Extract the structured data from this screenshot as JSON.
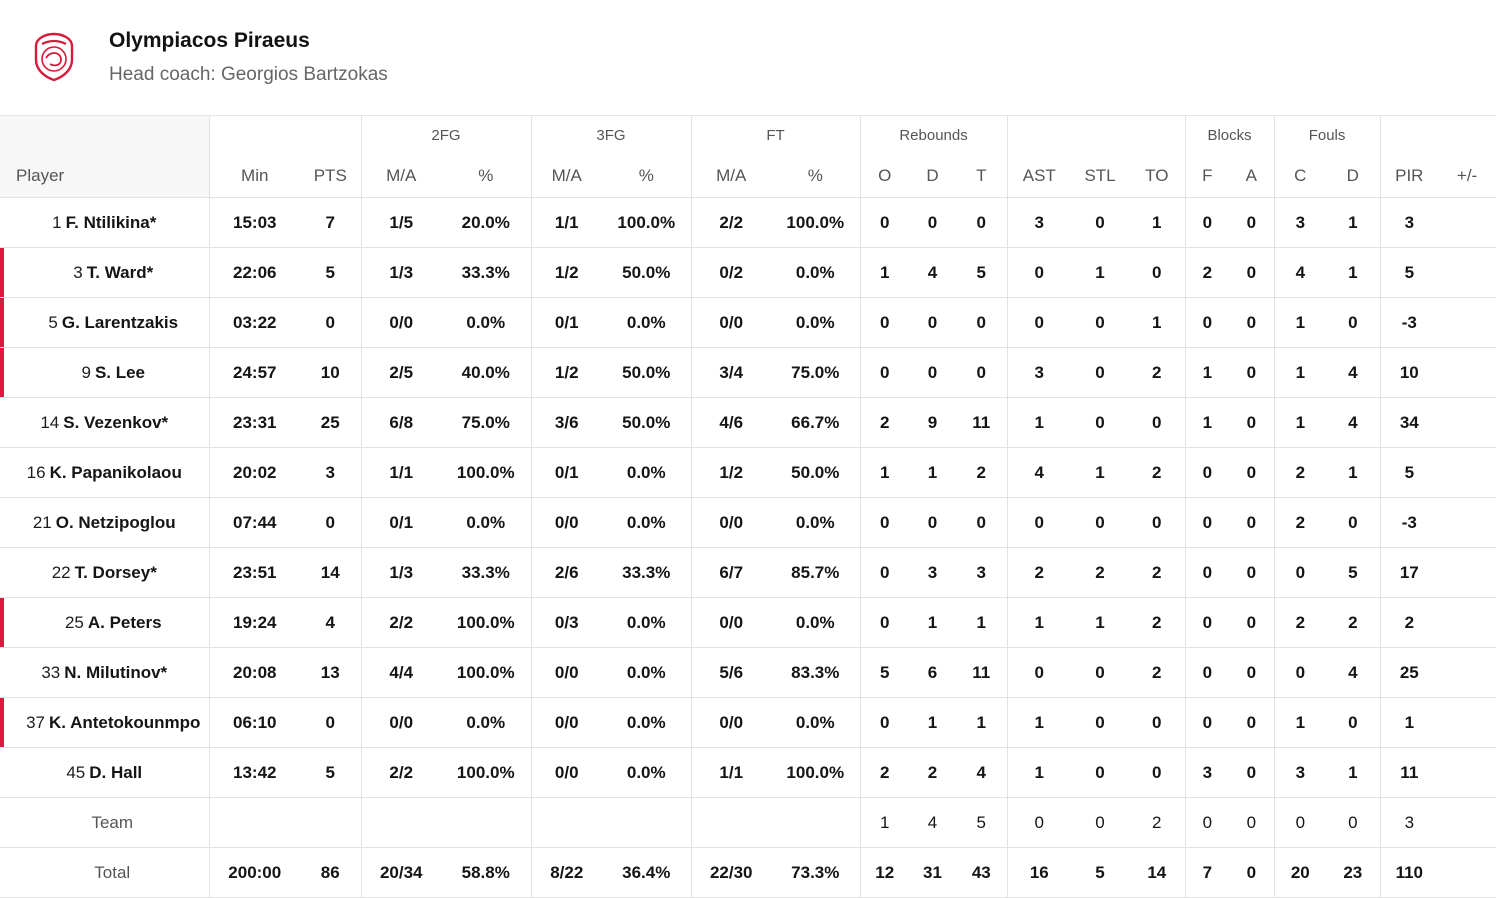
{
  "team": {
    "name": "Olympiacos Piraeus",
    "coach": "Head coach: Georgios Bartzokas"
  },
  "colors": {
    "accent": "#e0163f",
    "logo": "#d7193a"
  },
  "headers": {
    "group": {
      "fg2": "2FG",
      "fg3": "3FG",
      "ft": "FT",
      "rebounds": "Rebounds",
      "blocks": "Blocks",
      "fouls": "Fouls"
    },
    "cols": [
      "Player",
      "Min",
      "PTS",
      "M/A",
      "%",
      "M/A",
      "%",
      "M/A",
      "%",
      "O",
      "D",
      "T",
      "AST",
      "STL",
      "TO",
      "F",
      "A",
      "C",
      "D",
      "PIR",
      "+/-"
    ]
  },
  "players": [
    {
      "num": "1",
      "name": "F. Ntilikina*",
      "bench": false,
      "stats": [
        "15:03",
        "7",
        "1/5",
        "20.0%",
        "1/1",
        "100.0%",
        "2/2",
        "100.0%",
        "0",
        "0",
        "0",
        "3",
        "0",
        "1",
        "0",
        "0",
        "3",
        "1",
        "3",
        ""
      ]
    },
    {
      "num": "3",
      "name": "T. Ward*",
      "bench": true,
      "stats": [
        "22:06",
        "5",
        "1/3",
        "33.3%",
        "1/2",
        "50.0%",
        "0/2",
        "0.0%",
        "1",
        "4",
        "5",
        "0",
        "1",
        "0",
        "2",
        "0",
        "4",
        "1",
        "5",
        ""
      ]
    },
    {
      "num": "5",
      "name": "G. Larentzakis",
      "bench": true,
      "stats": [
        "03:22",
        "0",
        "0/0",
        "0.0%",
        "0/1",
        "0.0%",
        "0/0",
        "0.0%",
        "0",
        "0",
        "0",
        "0",
        "0",
        "1",
        "0",
        "0",
        "1",
        "0",
        "-3",
        ""
      ]
    },
    {
      "num": "9",
      "name": "S. Lee",
      "bench": true,
      "stats": [
        "24:57",
        "10",
        "2/5",
        "40.0%",
        "1/2",
        "50.0%",
        "3/4",
        "75.0%",
        "0",
        "0",
        "0",
        "3",
        "0",
        "2",
        "1",
        "0",
        "1",
        "4",
        "10",
        ""
      ]
    },
    {
      "num": "14",
      "name": "S. Vezenkov*",
      "bench": false,
      "stats": [
        "23:31",
        "25",
        "6/8",
        "75.0%",
        "3/6",
        "50.0%",
        "4/6",
        "66.7%",
        "2",
        "9",
        "11",
        "1",
        "0",
        "0",
        "1",
        "0",
        "1",
        "4",
        "34",
        ""
      ]
    },
    {
      "num": "16",
      "name": "K. Papanikolaou",
      "bench": false,
      "stats": [
        "20:02",
        "3",
        "1/1",
        "100.0%",
        "0/1",
        "0.0%",
        "1/2",
        "50.0%",
        "1",
        "1",
        "2",
        "4",
        "1",
        "2",
        "0",
        "0",
        "2",
        "1",
        "5",
        ""
      ]
    },
    {
      "num": "21",
      "name": "O. Netzipoglou",
      "bench": false,
      "stats": [
        "07:44",
        "0",
        "0/1",
        "0.0%",
        "0/0",
        "0.0%",
        "0/0",
        "0.0%",
        "0",
        "0",
        "0",
        "0",
        "0",
        "0",
        "0",
        "0",
        "2",
        "0",
        "-3",
        ""
      ]
    },
    {
      "num": "22",
      "name": "T. Dorsey*",
      "bench": false,
      "stats": [
        "23:51",
        "14",
        "1/3",
        "33.3%",
        "2/6",
        "33.3%",
        "6/7",
        "85.7%",
        "0",
        "3",
        "3",
        "2",
        "2",
        "2",
        "0",
        "0",
        "0",
        "5",
        "17",
        ""
      ]
    },
    {
      "num": "25",
      "name": "A. Peters",
      "bench": true,
      "stats": [
        "19:24",
        "4",
        "2/2",
        "100.0%",
        "0/3",
        "0.0%",
        "0/0",
        "0.0%",
        "0",
        "1",
        "1",
        "1",
        "1",
        "2",
        "0",
        "0",
        "2",
        "2",
        "2",
        ""
      ]
    },
    {
      "num": "33",
      "name": "N. Milutinov*",
      "bench": false,
      "stats": [
        "20:08",
        "13",
        "4/4",
        "100.0%",
        "0/0",
        "0.0%",
        "5/6",
        "83.3%",
        "5",
        "6",
        "11",
        "0",
        "0",
        "2",
        "0",
        "0",
        "0",
        "4",
        "25",
        ""
      ]
    },
    {
      "num": "37",
      "name": "K. Antetokounmpo",
      "bench": true,
      "stats": [
        "06:10",
        "0",
        "0/0",
        "0.0%",
        "0/0",
        "0.0%",
        "0/0",
        "0.0%",
        "0",
        "1",
        "1",
        "1",
        "0",
        "0",
        "0",
        "0",
        "1",
        "0",
        "1",
        ""
      ]
    },
    {
      "num": "45",
      "name": "D. Hall",
      "bench": false,
      "stats": [
        "13:42",
        "5",
        "2/2",
        "100.0%",
        "0/0",
        "0.0%",
        "1/1",
        "100.0%",
        "2",
        "2",
        "4",
        "1",
        "0",
        "0",
        "3",
        "0",
        "3",
        "1",
        "11",
        ""
      ]
    }
  ],
  "team_row": {
    "label": "Team",
    "stats": [
      "",
      "",
      "",
      "",
      "",
      "",
      "",
      "",
      "1",
      "4",
      "5",
      "0",
      "0",
      "2",
      "0",
      "0",
      "0",
      "0",
      "3",
      ""
    ]
  },
  "total_row": {
    "label": "Total",
    "stats": [
      "200:00",
      "86",
      "20/34",
      "58.8%",
      "8/22",
      "36.4%",
      "22/30",
      "73.3%",
      "12",
      "31",
      "43",
      "16",
      "5",
      "14",
      "7",
      "0",
      "20",
      "23",
      "110",
      ""
    ]
  }
}
